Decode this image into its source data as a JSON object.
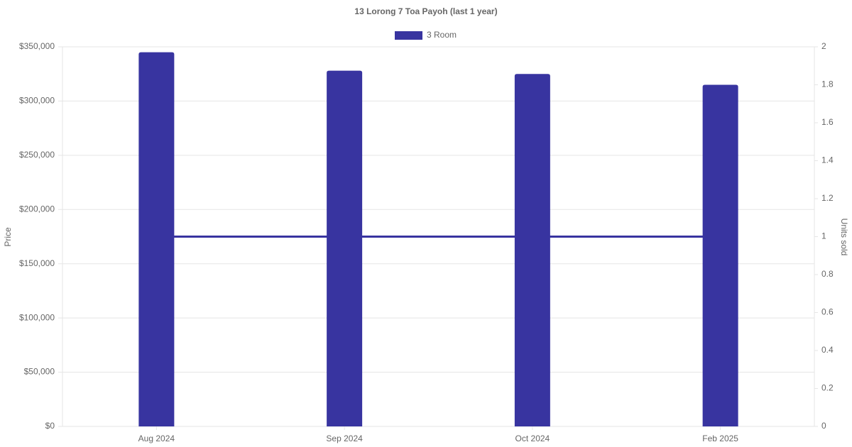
{
  "chart_data": {
    "type": "bar",
    "title": "13 Lorong 7 Toa Payoh (last 1 year)",
    "categories": [
      "Aug 2024",
      "Sep 2024",
      "Oct 2024",
      "Feb 2025"
    ],
    "series": [
      {
        "name": "3 Room",
        "color": "#3834a0",
        "values": [
          345000,
          328000,
          325000,
          315000
        ]
      },
      {
        "type": "line",
        "axis": "y2",
        "color": "#3834a0",
        "values": [
          1,
          1,
          1,
          1
        ]
      }
    ],
    "y_label": "Price",
    "y2_label": "Units sold",
    "ylim": [
      0,
      350000
    ],
    "yticks": [
      {
        "value": 0,
        "label": "$0"
      },
      {
        "value": 50000,
        "label": "$50,000"
      },
      {
        "value": 100000,
        "label": "$100,000"
      },
      {
        "value": 150000,
        "label": "$150,000"
      },
      {
        "value": 200000,
        "label": "$200,000"
      },
      {
        "value": 250000,
        "label": "$250,000"
      },
      {
        "value": 300000,
        "label": "$300,000"
      },
      {
        "value": 350000,
        "label": "$350,000"
      }
    ],
    "y2lim": [
      0,
      2
    ],
    "y2ticks": [
      0,
      0.2,
      0.4,
      0.6,
      0.8,
      1,
      1.2,
      1.4,
      1.6,
      1.8,
      2
    ],
    "grid": true,
    "legend": "top"
  }
}
